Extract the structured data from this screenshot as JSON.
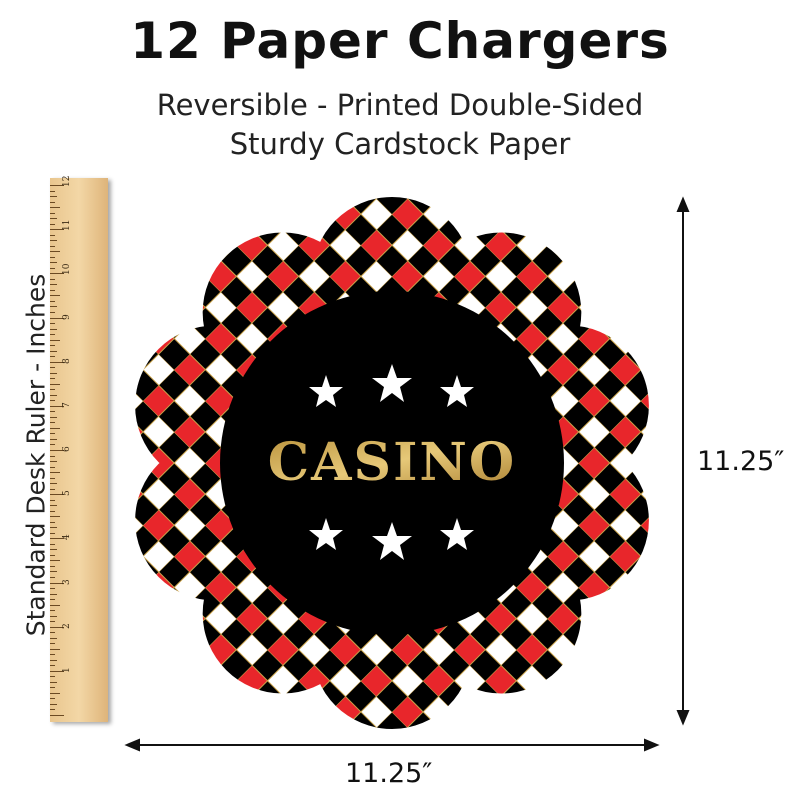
{
  "title": "12 Paper Chargers",
  "subtitle_line1": "Reversible - Printed Double-Sided",
  "subtitle_line2": "Sturdy Cardstock Paper",
  "ruler": {
    "label": "Standard Desk Ruler - Inches",
    "numbers": [
      "1",
      "2",
      "3",
      "4",
      "5",
      "6",
      "7",
      "8",
      "9",
      "10",
      "11",
      "12"
    ]
  },
  "charger": {
    "text": "CASINO",
    "colors": {
      "black": "#000000",
      "red": "#e8262b",
      "white": "#ffffff",
      "gold": "#c9a24a"
    }
  },
  "dimensions": {
    "height": "11.25″",
    "width": "11.25″"
  }
}
